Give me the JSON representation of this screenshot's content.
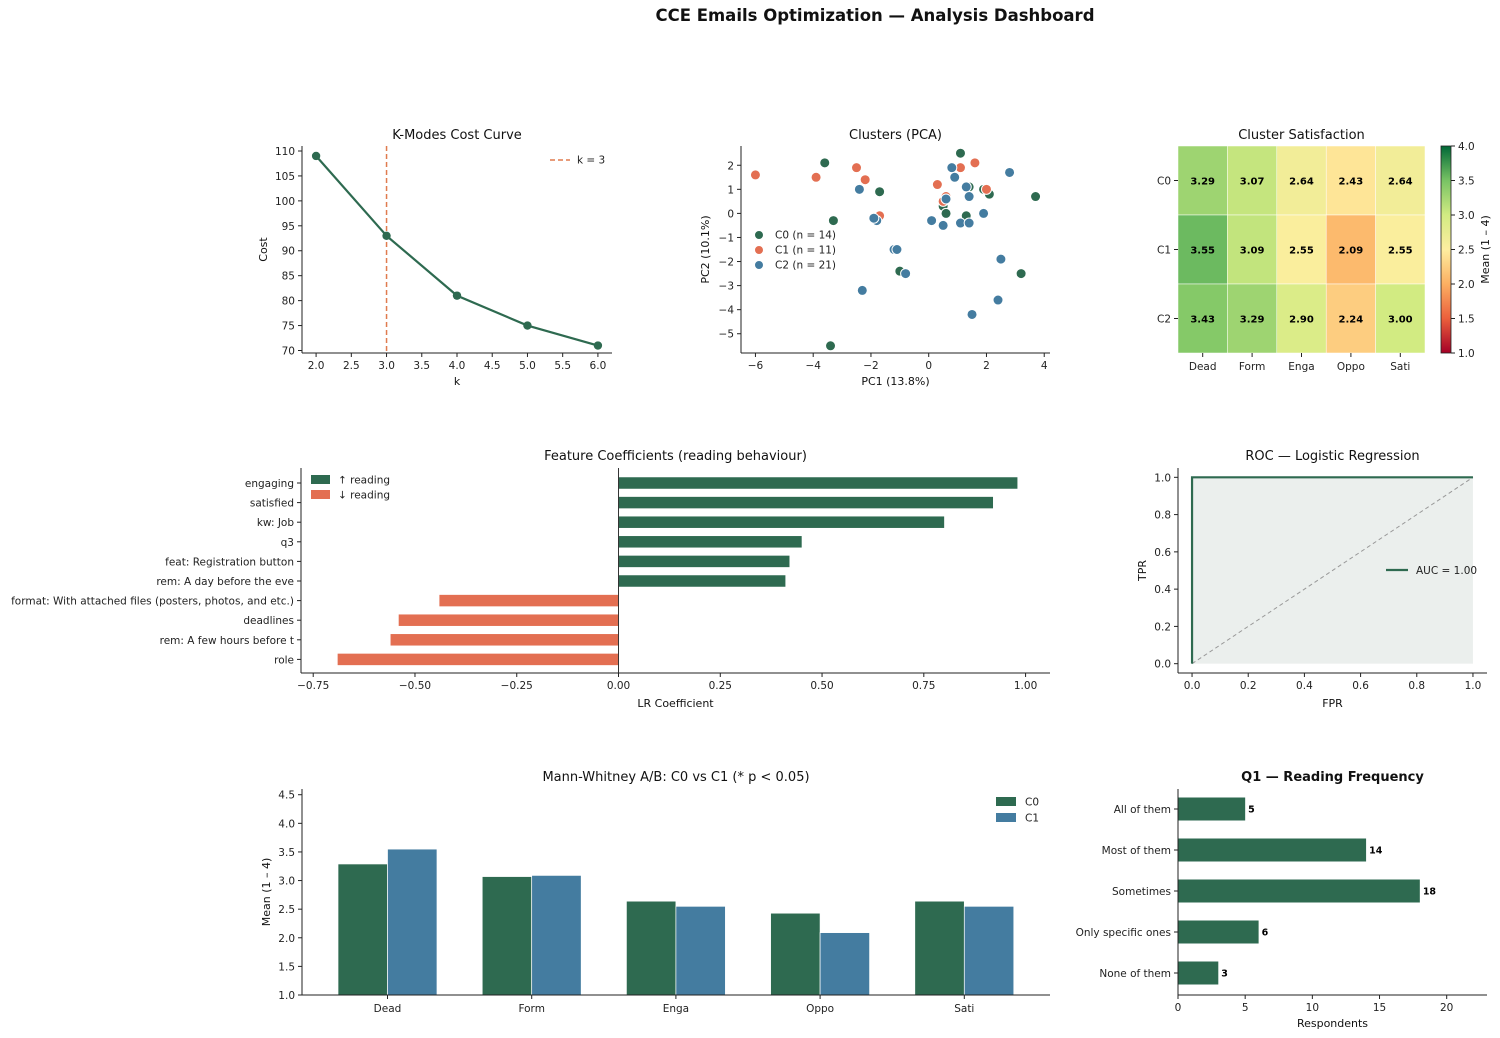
{
  "title": "CCE Emails Optimization — Analysis Dashboard",
  "colors": {
    "green": "#2e6a50",
    "orange": "#e36f52",
    "blue": "#447ca0",
    "dashed_line": "#e07b4f",
    "roc_fill": "#ebefed",
    "diagonal": "#999999"
  },
  "chart_data": [
    {
      "id": "kmodes",
      "type": "line",
      "title": "K-Modes Cost Curve",
      "xlabel": "k",
      "ylabel": "Cost",
      "x": [
        2,
        3,
        4,
        5,
        6
      ],
      "y": [
        109,
        93,
        81,
        75,
        71
      ],
      "xlim": [
        1.8,
        6.2
      ],
      "ylim": [
        69.5,
        111
      ],
      "xticks": [
        "2.0",
        "2.5",
        "3.0",
        "3.5",
        "4.0",
        "4.5",
        "5.0",
        "5.5",
        "6.0"
      ],
      "yticks": [
        "70",
        "75",
        "80",
        "85",
        "90",
        "95",
        "100",
        "105",
        "110"
      ],
      "vline": {
        "x": 3,
        "label": "k = 3"
      },
      "legend": "top-right",
      "grid": false
    },
    {
      "id": "pca",
      "type": "scatter",
      "title": "Clusters (PCA)",
      "xlabel": "PC1 (13.8%)",
      "ylabel": "PC2 (10.1%)",
      "xlim": [
        -6.5,
        4.2
      ],
      "ylim": [
        -5.8,
        2.8
      ],
      "xticks": [
        "−6",
        "−4",
        "−2",
        "0",
        "2",
        "4"
      ],
      "yticks": [
        "−5",
        "−4",
        "−3",
        "−2",
        "−1",
        "0",
        "1",
        "2"
      ],
      "legend": "center-left",
      "grid": false,
      "series": [
        {
          "name": "C0 (n = 14)",
          "points": [
            [
              -3.6,
              2.1
            ],
            [
              -3.3,
              -0.3
            ],
            [
              -1.7,
              0.9
            ],
            [
              -1.0,
              -2.4
            ],
            [
              -3.4,
              -5.5
            ],
            [
              0.5,
              0.3
            ],
            [
              0.6,
              0
            ],
            [
              1.1,
              2.5
            ],
            [
              1.3,
              -0.1
            ],
            [
              2.1,
              0.8
            ],
            [
              3.2,
              -2.5
            ],
            [
              3.7,
              0.7
            ],
            [
              1.4,
              1.1
            ],
            [
              1.9,
              1.0
            ]
          ]
        },
        {
          "name": "C1 (n = 11)",
          "points": [
            [
              -6.0,
              1.6
            ],
            [
              -3.9,
              1.5
            ],
            [
              -2.5,
              1.9
            ],
            [
              -2.2,
              1.4
            ],
            [
              -1.7,
              -0.1
            ],
            [
              0.3,
              1.2
            ],
            [
              0.5,
              0.5
            ],
            [
              0.6,
              0.7
            ],
            [
              1.1,
              1.9
            ],
            [
              1.6,
              2.1
            ],
            [
              2.0,
              1.0
            ]
          ]
        },
        {
          "name": "C2 (n = 21)",
          "points": [
            [
              -2.4,
              1.0
            ],
            [
              -1.8,
              -0.3
            ],
            [
              -2.3,
              -3.2
            ],
            [
              -1.2,
              -1.5
            ],
            [
              -1.1,
              -1.5
            ],
            [
              -0.8,
              -2.5
            ],
            [
              0.1,
              -0.3
            ],
            [
              0.5,
              -0.5
            ],
            [
              0.8,
              1.9
            ],
            [
              0.9,
              1.5
            ],
            [
              1.1,
              -0.4
            ],
            [
              1.3,
              1.1
            ],
            [
              1.4,
              0.7
            ],
            [
              1.4,
              -0.4
            ],
            [
              1.9,
              0
            ],
            [
              2.5,
              -1.9
            ],
            [
              2.4,
              -3.6
            ],
            [
              2.8,
              1.7
            ],
            [
              1.5,
              -4.2
            ],
            [
              -1.9,
              -0.2
            ],
            [
              0.6,
              0.6
            ]
          ]
        }
      ]
    },
    {
      "id": "heatmap",
      "type": "heatmap",
      "title": "Cluster Satisfaction",
      "rows": [
        "C0",
        "C1",
        "C2"
      ],
      "cols": [
        "Dead",
        "Form",
        "Enga",
        "Oppo",
        "Sati"
      ],
      "values": [
        [
          3.29,
          3.07,
          2.64,
          2.43,
          2.64
        ],
        [
          3.55,
          3.09,
          2.55,
          2.09,
          2.55
        ],
        [
          3.43,
          3.29,
          2.9,
          2.24,
          3.0
        ]
      ],
      "vmin": 1.0,
      "vmax": 4.0,
      "colorbar_label": "Mean (1 – 4)",
      "colorbar_ticks": [
        "1.0",
        "1.5",
        "2.0",
        "2.5",
        "3.0",
        "3.5",
        "4.0"
      ]
    },
    {
      "id": "coef",
      "type": "bar",
      "title": "Feature Coefficients (reading behaviour)",
      "xlabel": "LR Coefficient",
      "categories": [
        "engaging",
        "satisfied",
        "kw: Job",
        "q3",
        "feat: Registration button",
        "rem: A day before the eve",
        "format: With attached files (posters, photos, and etc.)",
        "deadlines",
        "rem: A few hours before t",
        "role"
      ],
      "values": [
        0.98,
        0.92,
        0.8,
        0.45,
        0.42,
        0.41,
        -0.44,
        -0.54,
        -0.56,
        -0.69
      ],
      "xlim": [
        -0.78,
        1.06
      ],
      "xticks": [
        "−0.75",
        "−0.50",
        "−0.25",
        "0.00",
        "0.25",
        "0.50",
        "0.75",
        "1.00"
      ],
      "legend": [
        {
          "name": "↑ reading",
          "color": "green"
        },
        {
          "name": "↓ reading",
          "color": "orange"
        }
      ],
      "legend_position": "top-left"
    },
    {
      "id": "roc",
      "type": "line",
      "title": "ROC — Logistic Regression",
      "xlabel": "FPR",
      "ylabel": "TPR",
      "series": [
        {
          "name": "AUC = 1.00",
          "x": [
            0,
            0,
            1
          ],
          "y": [
            0,
            1,
            1
          ]
        }
      ],
      "diagonal": [
        [
          0,
          0
        ],
        [
          1,
          1
        ]
      ],
      "xlim": [
        -0.05,
        1.05
      ],
      "ylim": [
        -0.05,
        1.05
      ],
      "xticks": [
        "0.0",
        "0.2",
        "0.4",
        "0.6",
        "0.8",
        "1.0"
      ],
      "yticks": [
        "0.0",
        "0.2",
        "0.4",
        "0.6",
        "0.8",
        "1.0"
      ],
      "legend": "center-right"
    },
    {
      "id": "mw",
      "type": "bar",
      "title": "Mann-Whitney A/B: C0 vs C1  (* p < 0.05)",
      "ylabel": "Mean (1 – 4)",
      "categories": [
        "Dead",
        "Form",
        "Enga",
        "Oppo",
        "Sati"
      ],
      "series": [
        {
          "name": "C0",
          "values": [
            3.29,
            3.07,
            2.64,
            2.43,
            2.64
          ]
        },
        {
          "name": "C1",
          "values": [
            3.55,
            3.09,
            2.55,
            2.09,
            2.55
          ]
        }
      ],
      "ylim": [
        1.0,
        4.6
      ],
      "yticks": [
        "1.0",
        "1.5",
        "2.0",
        "2.5",
        "3.0",
        "3.5",
        "4.0",
        "4.5"
      ],
      "legend": "top-right"
    },
    {
      "id": "q1",
      "type": "bar",
      "title": "Q1 — Reading Frequency",
      "xlabel": "Respondents",
      "categories": [
        "All of them",
        "Most of them",
        "Sometimes",
        "Only specific ones",
        "None of them"
      ],
      "values": [
        5,
        14,
        18,
        6,
        3
      ],
      "value_labels": [
        "5",
        "14",
        "18",
        "6",
        "3"
      ],
      "xlim": [
        0,
        23
      ],
      "xticks": [
        "0",
        "5",
        "10",
        "15",
        "20"
      ]
    }
  ]
}
